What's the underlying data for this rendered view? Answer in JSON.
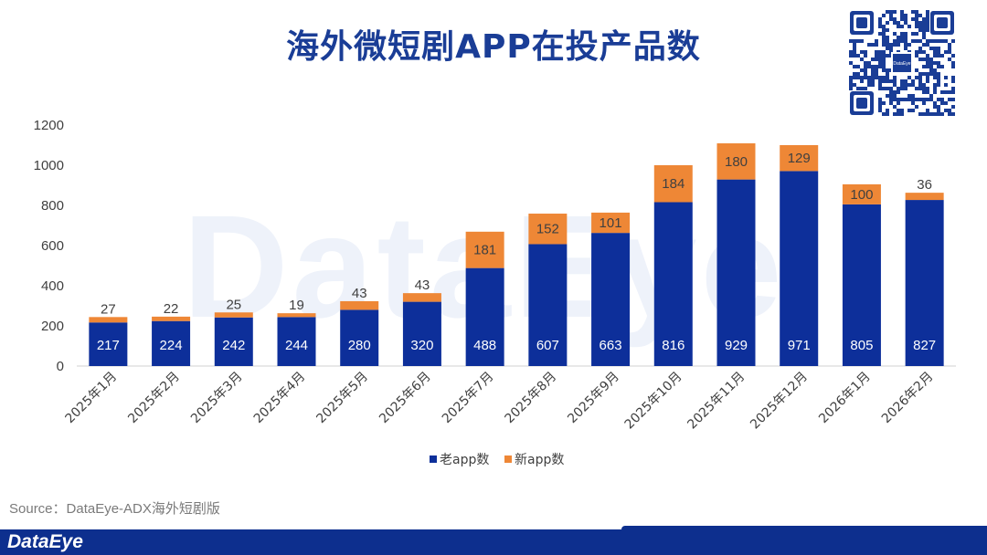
{
  "title": "海外微短剧APP在投产品数",
  "watermark": "DataEye",
  "qr_label": "DataEye",
  "source": "Source：DataEye-ADX海外短剧版",
  "footer_brand": "DataEye",
  "colors": {
    "old": "#0d2f9a",
    "new": "#ee8736",
    "title": "#1a3d96",
    "footer": "#0d2f8e"
  },
  "chart_data": {
    "type": "bar",
    "stacked": true,
    "categories": [
      "2025年1月",
      "2025年2月",
      "2025年3月",
      "2025年4月",
      "2025年5月",
      "2025年6月",
      "2025年7月",
      "2025年8月",
      "2025年9月",
      "2025年10月",
      "2025年11月",
      "2025年12月",
      "2026年1月",
      "2026年2月"
    ],
    "series": [
      {
        "name": "老app数",
        "values": [
          217,
          224,
          242,
          244,
          280,
          320,
          488,
          607,
          663,
          816,
          929,
          971,
          805,
          827
        ]
      },
      {
        "name": "新app数",
        "values": [
          27,
          22,
          25,
          19,
          43,
          43,
          181,
          152,
          101,
          184,
          180,
          129,
          100,
          36
        ]
      }
    ],
    "yticks": [
      0,
      200,
      400,
      600,
      800,
      1000,
      1200
    ],
    "ylim": [
      0,
      1200
    ],
    "legend": "bottom-center",
    "grid": false
  }
}
